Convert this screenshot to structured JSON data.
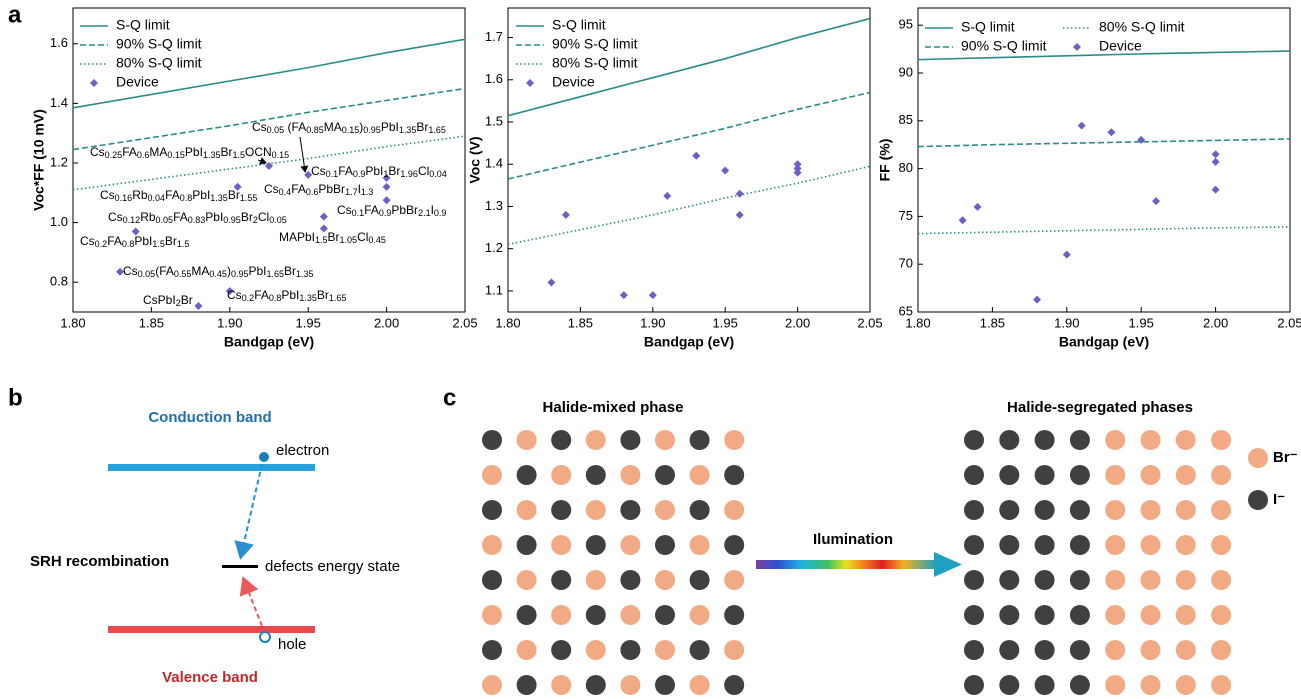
{
  "panel_labels": [
    "a",
    "b",
    "c"
  ],
  "chart_data": [
    {
      "type": "line",
      "ylabel": "Voc*FF (10 mV)",
      "xlabel": "Bandgap (eV)",
      "xlim": [
        1.8,
        2.05
      ],
      "ylim": [
        0.7,
        1.72
      ],
      "xticks": [
        {
          "value": 1.8,
          "label": "1.80"
        },
        1.85,
        {
          "value": 1.9,
          "label": "1.90"
        },
        1.95,
        {
          "value": 2,
          "label": "2.00"
        },
        2.05
      ],
      "yticks": [
        0.8,
        {
          "value": 1,
          "label": "1.0"
        },
        1.2,
        1.4,
        1.6
      ],
      "legend": "upper left",
      "series": [
        {
          "name": "S-Q limit",
          "type": "line",
          "color": "#2b8a8a",
          "linestyle": "solid",
          "x": [
            1.8,
            1.85,
            1.9,
            1.95,
            2,
            2.05
          ],
          "values": [
            1.385,
            1.43,
            1.475,
            1.52,
            1.57,
            1.615
          ]
        },
        {
          "name": "90% S-Q limit",
          "type": "line",
          "color": "#2b8a8a",
          "linestyle": "dashed",
          "x": [
            1.8,
            1.85,
            1.9,
            1.95,
            2,
            2.05
          ],
          "values": [
            1.245,
            1.285,
            1.325,
            1.37,
            1.41,
            1.45
          ]
        },
        {
          "name": "80% S-Q limit",
          "type": "line",
          "color": "#2b8a8a",
          "linestyle": "dotted",
          "x": [
            1.8,
            1.85,
            1.9,
            1.95,
            2,
            2.05
          ],
          "values": [
            1.11,
            1.145,
            1.18,
            1.215,
            1.255,
            1.29
          ]
        },
        {
          "name": "Device",
          "type": "scatter",
          "color": "#6f5fc4",
          "marker": "diamond",
          "x": [
            1.83,
            1.84,
            1.88,
            1.9,
            1.905,
            1.925,
            1.95,
            1.96,
            1.96,
            2,
            2,
            2
          ],
          "values": [
            0.835,
            0.97,
            0.72,
            0.77,
            1.12,
            1.19,
            1.16,
            1.02,
            0.98,
            1.15,
            1.12,
            1.075
          ],
          "labels": [
            "Cs0.05(FA0.55MA0.45)0.95PbI1.65Br1.35",
            "Cs0.2FA0.8PbI1.5Br1.5",
            "CsPbI2Br",
            "Cs0.2FA0.8PbI1.35Br1.65",
            "Cs0.16Rb0.04FA0.8PbI1.35Br1.55",
            "Cs0.25FA0.6MA0.15PbI1.35Br1.5OCN0.15",
            "Cs0.05 (FA0.85MA0.15)0.95PbI1.35Br1.65",
            "Cs0.12Rb0.05FA0.83PbI0.95Br2Cl0.05",
            "MAPbI1.5Br1.05Cl0.45",
            "Cs0.1FA0.9PbI1Br1.96Cl0.04",
            "Cs0.4FA0.6PbBr1.7I1.3",
            "Cs0.1FA0.9PbBr2.1I0.9"
          ]
        }
      ]
    },
    {
      "type": "line",
      "ylabel": "Voc (V)",
      "xlabel": "Bandgap (eV)",
      "xlim": [
        1.8,
        2.05
      ],
      "ylim": [
        1.05,
        1.77
      ],
      "xticks": [
        {
          "value": 1.8,
          "label": "1.80"
        },
        1.85,
        {
          "value": 1.9,
          "label": "1.90"
        },
        1.95,
        {
          "value": 2,
          "label": "2.00"
        },
        2.05
      ],
      "yticks": [
        1.1,
        1.2,
        1.3,
        1.4,
        1.5,
        1.6,
        1.7
      ],
      "legend": "upper left",
      "series": [
        {
          "name": "S-Q limit",
          "type": "line",
          "color": "#2b8a8a",
          "linestyle": "solid",
          "x": [
            1.8,
            1.85,
            1.9,
            1.95,
            2,
            2.05
          ],
          "values": [
            1.515,
            1.56,
            1.605,
            1.65,
            1.7,
            1.745
          ]
        },
        {
          "name": "90% S-Q limit",
          "type": "line",
          "color": "#2b8a8a",
          "linestyle": "dashed",
          "x": [
            1.8,
            1.85,
            1.9,
            1.95,
            2,
            2.05
          ],
          "values": [
            1.365,
            1.405,
            1.445,
            1.485,
            1.53,
            1.57
          ]
        },
        {
          "name": "80% S-Q limit",
          "type": "line",
          "color": "#2b8a8a",
          "linestyle": "dotted",
          "x": [
            1.8,
            1.85,
            1.9,
            1.95,
            2,
            2.05
          ],
          "values": [
            1.21,
            1.245,
            1.28,
            1.32,
            1.355,
            1.395
          ]
        },
        {
          "name": "Device",
          "type": "scatter",
          "color": "#6f5fc4",
          "marker": "diamond",
          "x": [
            1.83,
            1.84,
            1.88,
            1.9,
            1.91,
            1.93,
            1.95,
            1.96,
            1.96,
            2,
            2,
            2
          ],
          "values": [
            1.12,
            1.28,
            1.09,
            1.09,
            1.325,
            1.42,
            1.385,
            1.33,
            1.28,
            1.4,
            1.39,
            1.38
          ]
        }
      ]
    },
    {
      "type": "line",
      "ylabel": "FF (%)",
      "xlabel": "Bandgap (eV)",
      "xlim": [
        1.8,
        2.05
      ],
      "ylim": [
        65,
        96.8
      ],
      "xticks": [
        {
          "value": 1.8,
          "label": "1.80"
        },
        1.85,
        {
          "value": 1.9,
          "label": "1.90"
        },
        1.95,
        {
          "value": 2,
          "label": "2.00"
        },
        2.05
      ],
      "yticks": [
        65,
        70,
        75,
        80,
        85,
        90,
        95
      ],
      "legend": "upper left",
      "series": [
        {
          "name": "S-Q limit",
          "type": "line",
          "color": "#2b8a8a",
          "linestyle": "solid",
          "x": [
            1.8,
            1.85,
            1.9,
            1.95,
            2,
            2.05
          ],
          "values": [
            91.4,
            91.6,
            91.8,
            92,
            92.15,
            92.3
          ]
        },
        {
          "name": "90% S-Q limit",
          "type": "line",
          "color": "#2b8a8a",
          "linestyle": "dashed",
          "x": [
            1.8,
            1.85,
            1.9,
            1.95,
            2,
            2.05
          ],
          "values": [
            82.3,
            82.5,
            82.65,
            82.8,
            82.95,
            83.1
          ]
        },
        {
          "name": "80% S-Q limit",
          "type": "line",
          "color": "#2b8a8a",
          "linestyle": "dotted",
          "x": [
            1.8,
            1.85,
            1.9,
            1.95,
            2,
            2.05
          ],
          "values": [
            73.2,
            73.35,
            73.5,
            73.65,
            73.8,
            73.9
          ]
        },
        {
          "name": "Device",
          "type": "scatter",
          "color": "#6f5fc4",
          "marker": "diamond",
          "x": [
            1.83,
            1.84,
            1.88,
            1.9,
            1.91,
            1.93,
            1.95,
            1.96,
            2,
            2,
            2
          ],
          "values": [
            74.6,
            76,
            66.3,
            71,
            84.5,
            83.8,
            83,
            76.6,
            81.5,
            80.7,
            77.8
          ]
        }
      ]
    }
  ],
  "diagram_b": {
    "conduction_band": "Conduction band",
    "electron": "electron",
    "recombination": "SRH recombination",
    "defect_state": "defects energy state",
    "hole": "hole",
    "valence_band": "Valence band"
  },
  "diagram_c": {
    "mixed_title": "Halide-mixed phase",
    "segregated_title": "Halide-segregated phases",
    "arrow_label": "Ilumination",
    "legend": [
      "Br⁻",
      "I⁻"
    ]
  }
}
